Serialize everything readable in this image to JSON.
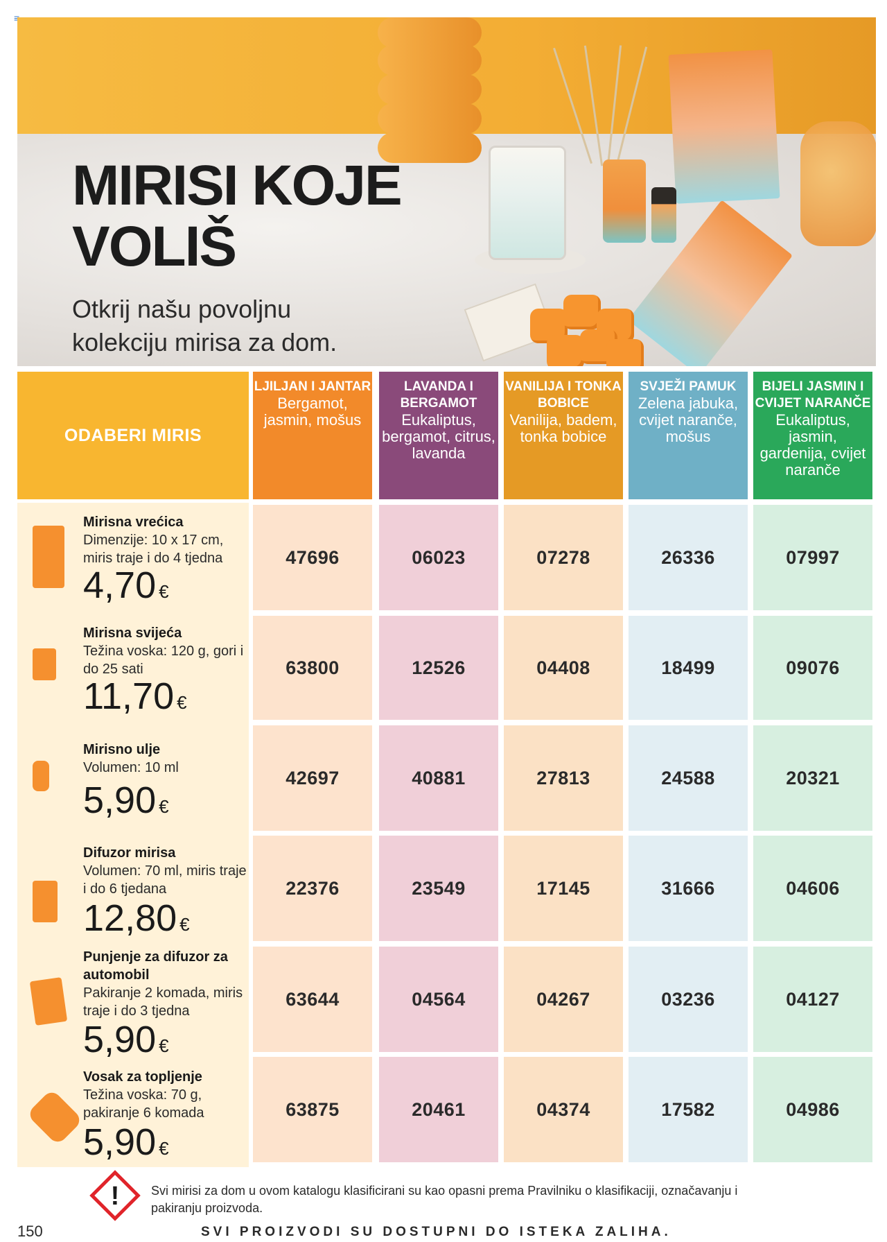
{
  "hero": {
    "title_line1": "MIRISI KOJE",
    "title_line2": "VOLIŠ",
    "subtitle_line1": "Otkrij našu povoljnu",
    "subtitle_line2": "kolekciju mirisa za dom."
  },
  "table": {
    "choose_label": "ODABERI MIRIS",
    "scents": [
      {
        "name": "LJILJAN I JANTAR",
        "notes": "Bergamot, jasmin, mošus",
        "header_color": "#f28a2a",
        "cell_color": "#fde3cd"
      },
      {
        "name": "LAVANDA I BERGAMOT",
        "notes": "Eukaliptus, bergamot, citrus, lavanda",
        "header_color": "#8a4a7a",
        "cell_color": "#f0cfd8"
      },
      {
        "name": "VANILIJA I TONKA BOBICE",
        "notes": "Vanilija, badem, tonka bobice",
        "header_color": "#e59a25",
        "cell_color": "#fbe1c5"
      },
      {
        "name": "SVJEŽI PAMUK",
        "notes": "Zelena jabuka, cvijet naranče, mošus",
        "header_color": "#6fb0c6",
        "cell_color": "#e2eef3"
      },
      {
        "name": "BIJELI JASMIN I CVIJET NARANČE",
        "notes": "Eukaliptus, jasmin, gardenija, cvijet naranče",
        "header_color": "#2aa85a",
        "cell_color": "#d7efe0"
      }
    ],
    "products": [
      {
        "name": "Mirisna vrećica",
        "desc": "Dimenzije: 10 x 17 cm, miris traje i do 4 tjedna",
        "price": "4,70",
        "currency": "€",
        "icon": "sachet-icon",
        "codes": [
          "47696",
          "06023",
          "07278",
          "26336",
          "07997"
        ]
      },
      {
        "name": "Mirisna svijeća",
        "desc": "Težina voska: 120 g, gori i do 25 sati",
        "price": "11,70",
        "currency": "€",
        "icon": "candle-icon",
        "codes": [
          "63800",
          "12526",
          "04408",
          "18499",
          "09076"
        ]
      },
      {
        "name": "Mirisno ulje",
        "desc": "Volumen: 10 ml",
        "price": "5,90",
        "currency": "€",
        "icon": "oil-bottle-icon",
        "codes": [
          "42697",
          "40881",
          "27813",
          "24588",
          "20321"
        ]
      },
      {
        "name": "Difuzor mirisa",
        "desc": "Volumen: 70 ml, miris traje i do 6 tjedana",
        "price": "12,80",
        "currency": "€",
        "icon": "reed-diffuser-icon",
        "codes": [
          "22376",
          "23549",
          "17145",
          "31666",
          "04606"
        ]
      },
      {
        "name": "Punjenje za difuzor za automobil",
        "desc": "Pakiranje 2 komada, miris traje i do 3 tjedna",
        "price": "5,90",
        "currency": "€",
        "icon": "car-diffuser-refill-icon",
        "codes": [
          "63644",
          "04564",
          "04267",
          "03236",
          "04127"
        ]
      },
      {
        "name": "Vosak za topljenje",
        "desc": "Težina voska: 70 g, pakiranje 6 komada",
        "price": "5,90",
        "currency": "€",
        "icon": "wax-melt-icon",
        "codes": [
          "63875",
          "20461",
          "04374",
          "17582",
          "04986"
        ]
      }
    ]
  },
  "warning": {
    "icon": "hazard-warning-icon",
    "text": "Svi mirisi za dom u ovom katalogu klasificirani su kao opasni prema Pravilniku o klasifikaciji, označavanju i pakiranju proizvoda."
  },
  "footer": {
    "page_number": "150",
    "availability": "SVI PROIZVODI SU DOSTUPNI DO ISTEKA ZALIHA."
  }
}
